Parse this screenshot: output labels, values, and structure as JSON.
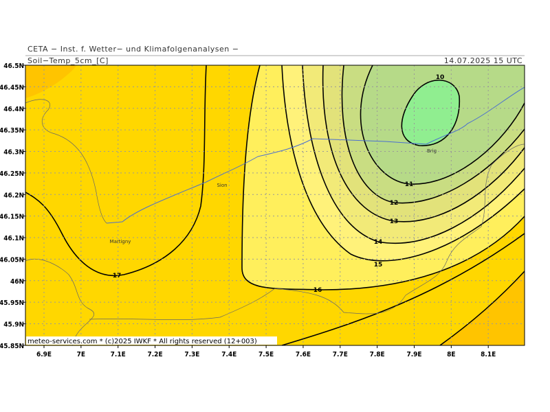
{
  "header": {
    "institute": "CETA − Inst. f. Wetter− und Klimafolgenanalysen −",
    "parameter": "Soil−Temp_5cm_[C]",
    "valid_time": "14.07.2025 15 UTC"
  },
  "lat_labels": [
    "46.5N",
    "46.45N",
    "46.4N",
    "46.35N",
    "46.3N",
    "46.25N",
    "46.2N",
    "46.15N",
    "46.1N",
    "46.05N",
    "46N",
    "45.95N",
    "45.9N",
    "45.85N"
  ],
  "lon_labels": [
    "6.9E",
    "7E",
    "7.1E",
    "7.2E",
    "7.3E",
    "7.4E",
    "7.5E",
    "7.6E",
    "7.7E",
    "7.8E",
    "7.9E",
    "8E",
    "8.1E"
  ],
  "contour_labels": [
    "10",
    "11",
    "12",
    "13",
    "14",
    "15",
    "16",
    "17"
  ],
  "places": [
    "Sion",
    "Martigny",
    "Brig"
  ],
  "footer": "meteo-services.com * (c)2025 IWKF * All rights reserved (12+003)"
}
